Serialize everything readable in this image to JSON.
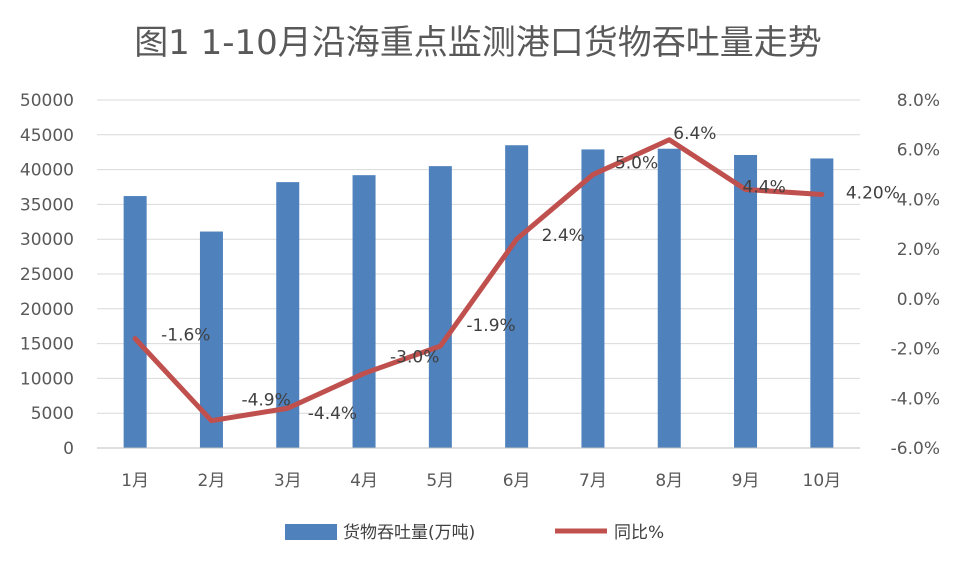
{
  "chart_data": {
    "type": "bar+line",
    "title": "图1 1-10月沿海重点监测港口货物吞吐量走势",
    "categories": [
      "1月",
      "2月",
      "3月",
      "4月",
      "5月",
      "6月",
      "7月",
      "8月",
      "9月",
      "10月"
    ],
    "series": [
      {
        "name": "货物吞吐量(万吨)",
        "type": "bar",
        "axis": "left",
        "color": "#4f81bd",
        "values": [
          36200,
          31100,
          38200,
          39200,
          40500,
          43500,
          42900,
          43000,
          42100,
          41600
        ]
      },
      {
        "name": "同比%",
        "type": "line",
        "axis": "right",
        "color": "#c0504d",
        "values": [
          -1.6,
          -4.9,
          -4.4,
          -3.0,
          -1.9,
          2.4,
          5.0,
          6.4,
          4.4,
          4.2
        ],
        "data_labels": [
          "-1.6%",
          "-4.9%",
          "-4.4%",
          "-3.0%",
          "-1.9%",
          "2.4%",
          "5.0%",
          "6.4%",
          "4.4%",
          "4.20%"
        ]
      }
    ],
    "y_left": {
      "min": 0,
      "max": 50000,
      "ticks": [
        "0",
        "5000",
        "10000",
        "15000",
        "20000",
        "25000",
        "30000",
        "35000",
        "40000",
        "45000",
        "50000"
      ]
    },
    "y_right": {
      "min": -6,
      "max": 8,
      "ticks": [
        "-6.0%",
        "-4.0%",
        "-2.0%",
        "0.0%",
        "2.0%",
        "4.0%",
        "6.0%",
        "8.0%"
      ]
    },
    "grid": true,
    "legend_position": "bottom"
  }
}
